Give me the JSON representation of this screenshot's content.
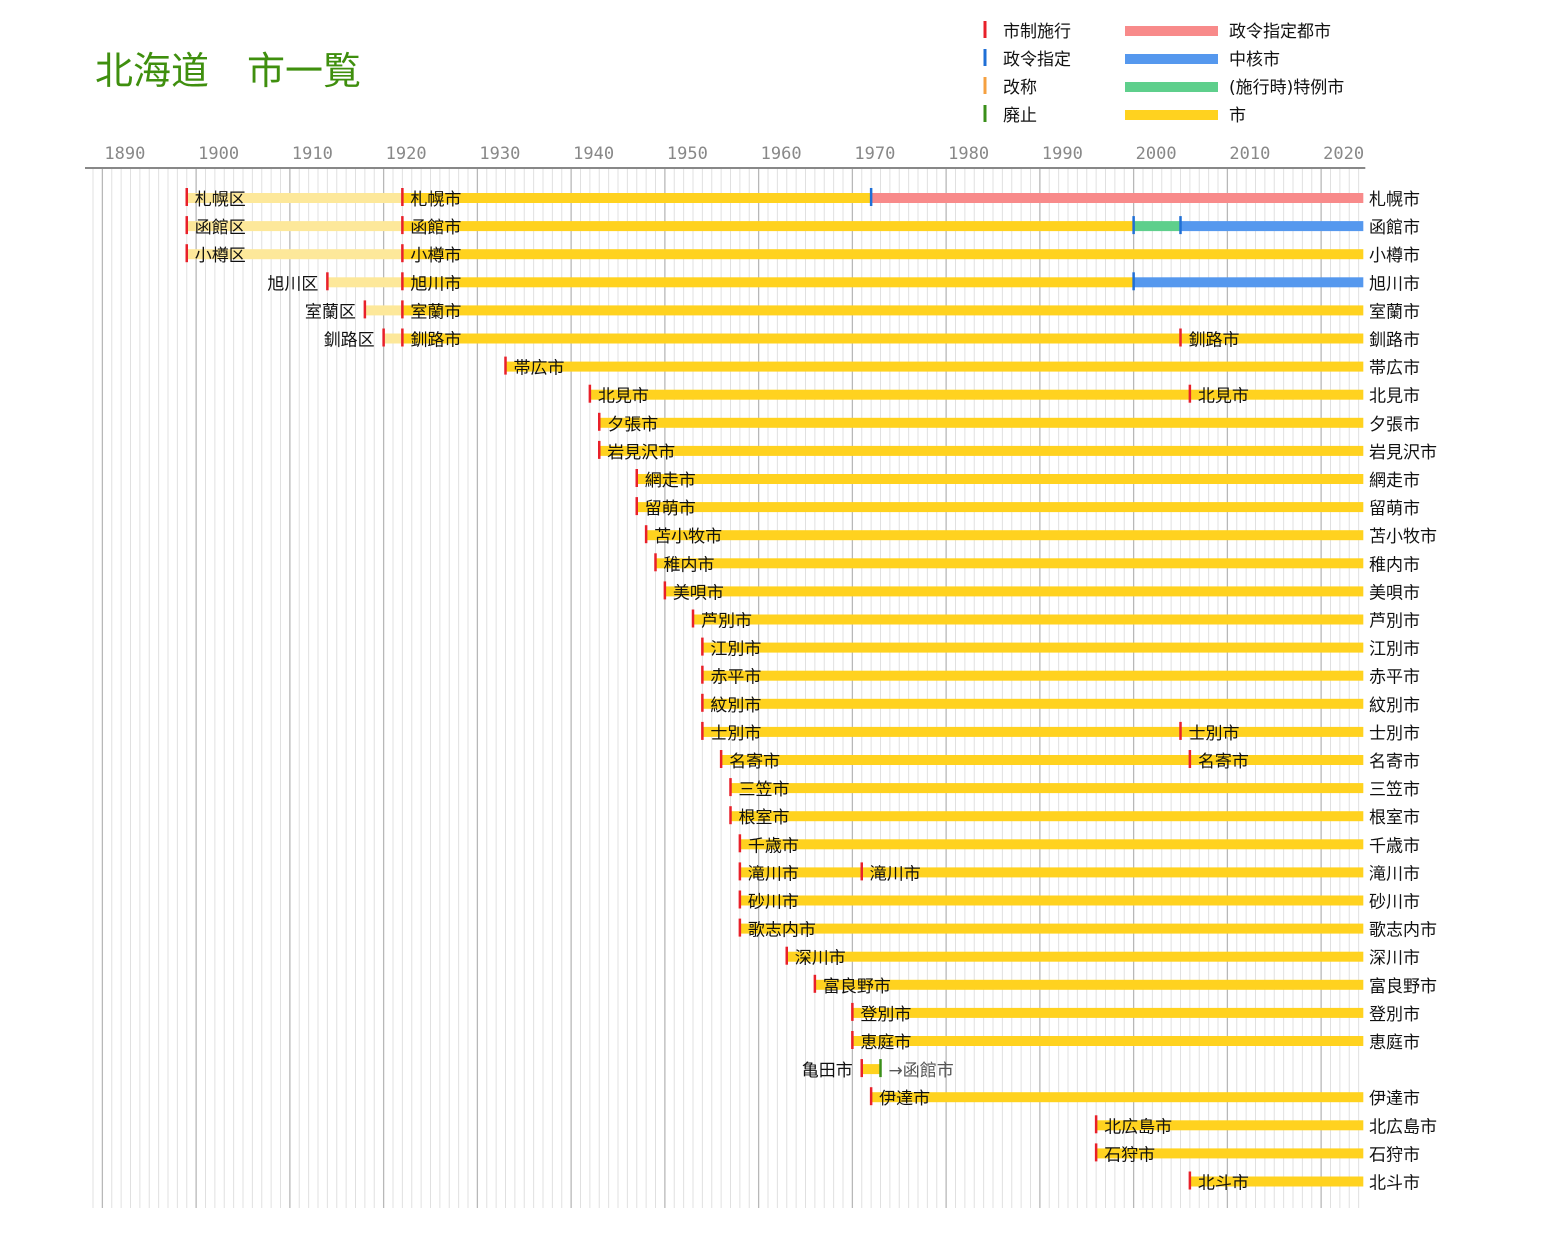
{
  "chart_data": {
    "type": "timeline",
    "title": "北海道　市一覧",
    "xlim": [
      1889,
      2024.5
    ],
    "xticks": [
      1890,
      1900,
      1910,
      1920,
      1930,
      1940,
      1950,
      1960,
      1970,
      1980,
      1990,
      2000,
      2010,
      2020
    ],
    "colors": {
      "ku": "#fde89a",
      "city": "#ffd21f",
      "core": "#5598ee",
      "special": "#5ecf8c",
      "designated": "#f88a8a",
      "mark_enact": "#e8202a",
      "mark_designate": "#1f6fd6",
      "mark_rename": "#f5a040",
      "mark_abolish": "#3a8f1a"
    },
    "legend": {
      "marks": [
        {
          "label": "市制施行",
          "color_key": "mark_enact"
        },
        {
          "label": "政令指定",
          "color_key": "mark_designate"
        },
        {
          "label": "改称",
          "color_key": "mark_rename"
        },
        {
          "label": "廃止",
          "color_key": "mark_abolish"
        }
      ],
      "bars": [
        {
          "label": "政令指定都市",
          "color_key": "designated"
        },
        {
          "label": "中核市",
          "color_key": "core"
        },
        {
          "label": "(施行時)特例市",
          "color_key": "special"
        },
        {
          "label": "市",
          "color_key": "city"
        }
      ]
    },
    "rows": [
      {
        "right": "札幌市",
        "segments": [
          [
            "ku",
            1899,
            1922
          ],
          [
            "city",
            1922,
            1972
          ],
          [
            "designated",
            1972,
            2024.5
          ]
        ],
        "marks": [
          [
            "mark_enact",
            1899
          ],
          [
            "mark_enact",
            1922
          ],
          [
            "mark_designate",
            1972
          ]
        ],
        "labels": [
          [
            "札幌区",
            1899,
            "after"
          ],
          [
            "札幌市",
            1922,
            "after"
          ]
        ]
      },
      {
        "right": "函館市",
        "segments": [
          [
            "ku",
            1899,
            1922
          ],
          [
            "city",
            1922,
            2000
          ],
          [
            "special",
            2000,
            2005
          ],
          [
            "core",
            2005,
            2024.5
          ]
        ],
        "marks": [
          [
            "mark_enact",
            1899
          ],
          [
            "mark_enact",
            1922
          ],
          [
            "mark_designate",
            2000
          ],
          [
            "mark_designate",
            2005
          ]
        ],
        "labels": [
          [
            "函館区",
            1899,
            "after"
          ],
          [
            "函館市",
            1922,
            "after"
          ]
        ]
      },
      {
        "right": "小樽市",
        "segments": [
          [
            "ku",
            1899,
            1922
          ],
          [
            "city",
            1922,
            2024.5
          ]
        ],
        "marks": [
          [
            "mark_enact",
            1899
          ],
          [
            "mark_enact",
            1922
          ]
        ],
        "labels": [
          [
            "小樽区",
            1899,
            "after"
          ],
          [
            "小樽市",
            1922,
            "after"
          ]
        ]
      },
      {
        "right": "旭川市",
        "segments": [
          [
            "ku",
            1914,
            1922
          ],
          [
            "city",
            1922,
            2000
          ],
          [
            "core",
            2000,
            2024.5
          ]
        ],
        "marks": [
          [
            "mark_enact",
            1914
          ],
          [
            "mark_enact",
            1922
          ],
          [
            "mark_designate",
            2000
          ]
        ],
        "labels": [
          [
            "旭川区",
            1914,
            "before"
          ],
          [
            "旭川市",
            1922,
            "after"
          ]
        ]
      },
      {
        "right": "室蘭市",
        "segments": [
          [
            "ku",
            1918,
            1922
          ],
          [
            "city",
            1922,
            2024.5
          ]
        ],
        "marks": [
          [
            "mark_enact",
            1918
          ],
          [
            "mark_enact",
            1922
          ]
        ],
        "labels": [
          [
            "室蘭区",
            1918,
            "before"
          ],
          [
            "室蘭市",
            1922,
            "after"
          ]
        ]
      },
      {
        "right": "釧路市",
        "segments": [
          [
            "ku",
            1920,
            1922
          ],
          [
            "city",
            1922,
            2024.5
          ]
        ],
        "marks": [
          [
            "mark_enact",
            1920
          ],
          [
            "mark_enact",
            1922
          ],
          [
            "mark_enact",
            2005
          ]
        ],
        "labels": [
          [
            "釧路区",
            1920,
            "before"
          ],
          [
            "釧路市",
            1922,
            "after"
          ],
          [
            "釧路市",
            2005,
            "after"
          ]
        ]
      },
      {
        "right": "帯広市",
        "segments": [
          [
            "city",
            1933,
            2024.5
          ]
        ],
        "marks": [
          [
            "mark_enact",
            1933
          ]
        ],
        "labels": [
          [
            "帯広市",
            1933,
            "after"
          ]
        ]
      },
      {
        "right": "北見市",
        "segments": [
          [
            "city",
            1942,
            2024.5
          ]
        ],
        "marks": [
          [
            "mark_enact",
            1942
          ],
          [
            "mark_enact",
            2006
          ]
        ],
        "labels": [
          [
            "北見市",
            1942,
            "after"
          ],
          [
            "北見市",
            2006,
            "after"
          ]
        ]
      },
      {
        "right": "夕張市",
        "segments": [
          [
            "city",
            1943,
            2024.5
          ]
        ],
        "marks": [
          [
            "mark_enact",
            1943
          ]
        ],
        "labels": [
          [
            "夕張市",
            1943,
            "after"
          ]
        ]
      },
      {
        "right": "岩見沢市",
        "segments": [
          [
            "city",
            1943,
            2024.5
          ]
        ],
        "marks": [
          [
            "mark_enact",
            1943
          ]
        ],
        "labels": [
          [
            "岩見沢市",
            1943,
            "after"
          ]
        ]
      },
      {
        "right": "網走市",
        "segments": [
          [
            "city",
            1947,
            2024.5
          ]
        ],
        "marks": [
          [
            "mark_enact",
            1947
          ]
        ],
        "labels": [
          [
            "網走市",
            1947,
            "after"
          ]
        ]
      },
      {
        "right": "留萌市",
        "segments": [
          [
            "city",
            1947,
            2024.5
          ]
        ],
        "marks": [
          [
            "mark_enact",
            1947
          ]
        ],
        "labels": [
          [
            "留萌市",
            1947,
            "after"
          ]
        ]
      },
      {
        "right": "苫小牧市",
        "segments": [
          [
            "city",
            1948,
            2024.5
          ]
        ],
        "marks": [
          [
            "mark_enact",
            1948
          ]
        ],
        "labels": [
          [
            "苫小牧市",
            1948,
            "after"
          ]
        ]
      },
      {
        "right": "稚内市",
        "segments": [
          [
            "city",
            1949,
            2024.5
          ]
        ],
        "marks": [
          [
            "mark_enact",
            1949
          ]
        ],
        "labels": [
          [
            "稚内市",
            1949,
            "after"
          ]
        ]
      },
      {
        "right": "美唄市",
        "segments": [
          [
            "city",
            1950,
            2024.5
          ]
        ],
        "marks": [
          [
            "mark_enact",
            1950
          ]
        ],
        "labels": [
          [
            "美唄市",
            1950,
            "after"
          ]
        ]
      },
      {
        "right": "芦別市",
        "segments": [
          [
            "city",
            1953,
            2024.5
          ]
        ],
        "marks": [
          [
            "mark_enact",
            1953
          ]
        ],
        "labels": [
          [
            "芦別市",
            1953,
            "after"
          ]
        ]
      },
      {
        "right": "江別市",
        "segments": [
          [
            "city",
            1954,
            2024.5
          ]
        ],
        "marks": [
          [
            "mark_enact",
            1954
          ]
        ],
        "labels": [
          [
            "江別市",
            1954,
            "after"
          ]
        ]
      },
      {
        "right": "赤平市",
        "segments": [
          [
            "city",
            1954,
            2024.5
          ]
        ],
        "marks": [
          [
            "mark_enact",
            1954
          ]
        ],
        "labels": [
          [
            "赤平市",
            1954,
            "after"
          ]
        ]
      },
      {
        "right": "紋別市",
        "segments": [
          [
            "city",
            1954,
            2024.5
          ]
        ],
        "marks": [
          [
            "mark_enact",
            1954
          ]
        ],
        "labels": [
          [
            "紋別市",
            1954,
            "after"
          ]
        ]
      },
      {
        "right": "士別市",
        "segments": [
          [
            "city",
            1954,
            2024.5
          ]
        ],
        "marks": [
          [
            "mark_enact",
            1954
          ],
          [
            "mark_enact",
            2005
          ]
        ],
        "labels": [
          [
            "士別市",
            1954,
            "after"
          ],
          [
            "士別市",
            2005,
            "after"
          ]
        ]
      },
      {
        "right": "名寄市",
        "segments": [
          [
            "city",
            1956,
            2024.5
          ]
        ],
        "marks": [
          [
            "mark_enact",
            1956
          ],
          [
            "mark_enact",
            2006
          ]
        ],
        "labels": [
          [
            "名寄市",
            1956,
            "after"
          ],
          [
            "名寄市",
            2006,
            "after"
          ]
        ]
      },
      {
        "right": "三笠市",
        "segments": [
          [
            "city",
            1957,
            2024.5
          ]
        ],
        "marks": [
          [
            "mark_enact",
            1957
          ]
        ],
        "labels": [
          [
            "三笠市",
            1957,
            "after"
          ]
        ]
      },
      {
        "right": "根室市",
        "segments": [
          [
            "city",
            1957,
            2024.5
          ]
        ],
        "marks": [
          [
            "mark_enact",
            1957
          ]
        ],
        "labels": [
          [
            "根室市",
            1957,
            "after"
          ]
        ]
      },
      {
        "right": "千歳市",
        "segments": [
          [
            "city",
            1958,
            2024.5
          ]
        ],
        "marks": [
          [
            "mark_enact",
            1958
          ]
        ],
        "labels": [
          [
            "千歳市",
            1958,
            "after"
          ]
        ]
      },
      {
        "right": "滝川市",
        "segments": [
          [
            "city",
            1958,
            2024.5
          ]
        ],
        "marks": [
          [
            "mark_enact",
            1958
          ],
          [
            "mark_enact",
            1971
          ]
        ],
        "labels": [
          [
            "滝川市",
            1958,
            "after"
          ],
          [
            "滝川市",
            1971,
            "after"
          ]
        ]
      },
      {
        "right": "砂川市",
        "segments": [
          [
            "city",
            1958,
            2024.5
          ]
        ],
        "marks": [
          [
            "mark_enact",
            1958
          ]
        ],
        "labels": [
          [
            "砂川市",
            1958,
            "after"
          ]
        ]
      },
      {
        "right": "歌志内市",
        "segments": [
          [
            "city",
            1958,
            2024.5
          ]
        ],
        "marks": [
          [
            "mark_enact",
            1958
          ]
        ],
        "labels": [
          [
            "歌志内市",
            1958,
            "after"
          ]
        ]
      },
      {
        "right": "深川市",
        "segments": [
          [
            "city",
            1963,
            2024.5
          ]
        ],
        "marks": [
          [
            "mark_enact",
            1963
          ]
        ],
        "labels": [
          [
            "深川市",
            1963,
            "after"
          ]
        ]
      },
      {
        "right": "富良野市",
        "segments": [
          [
            "city",
            1966,
            2024.5
          ]
        ],
        "marks": [
          [
            "mark_enact",
            1966
          ]
        ],
        "labels": [
          [
            "富良野市",
            1966,
            "after"
          ]
        ]
      },
      {
        "right": "登別市",
        "segments": [
          [
            "city",
            1970,
            2024.5
          ]
        ],
        "marks": [
          [
            "mark_enact",
            1970
          ]
        ],
        "labels": [
          [
            "登別市",
            1970,
            "after"
          ]
        ]
      },
      {
        "right": "恵庭市",
        "segments": [
          [
            "city",
            1970,
            2024.5
          ]
        ],
        "marks": [
          [
            "mark_enact",
            1970
          ]
        ],
        "labels": [
          [
            "恵庭市",
            1970,
            "after"
          ]
        ]
      },
      {
        "right": "",
        "segments": [
          [
            "city",
            1971,
            1973
          ]
        ],
        "marks": [
          [
            "mark_enact",
            1971
          ],
          [
            "mark_abolish",
            1973
          ]
        ],
        "labels": [
          [
            "亀田市",
            1971,
            "before"
          ]
        ],
        "note": {
          "text": "→函館市",
          "x": 1973
        }
      },
      {
        "right": "伊達市",
        "segments": [
          [
            "city",
            1972,
            2024.5
          ]
        ],
        "marks": [
          [
            "mark_enact",
            1972
          ]
        ],
        "labels": [
          [
            "伊達市",
            1972,
            "after"
          ]
        ]
      },
      {
        "right": "北広島市",
        "segments": [
          [
            "city",
            1996,
            2024.5
          ]
        ],
        "marks": [
          [
            "mark_enact",
            1996
          ]
        ],
        "labels": [
          [
            "北広島市",
            1996,
            "after"
          ]
        ]
      },
      {
        "right": "石狩市",
        "segments": [
          [
            "city",
            1996,
            2024.5
          ]
        ],
        "marks": [
          [
            "mark_enact",
            1996
          ]
        ],
        "labels": [
          [
            "石狩市",
            1996,
            "after"
          ]
        ]
      },
      {
        "right": "北斗市",
        "segments": [
          [
            "city",
            2006,
            2024.5
          ]
        ],
        "marks": [
          [
            "mark_enact",
            2006
          ]
        ],
        "labels": [
          [
            "北斗市",
            2006,
            "after"
          ]
        ]
      }
    ]
  }
}
